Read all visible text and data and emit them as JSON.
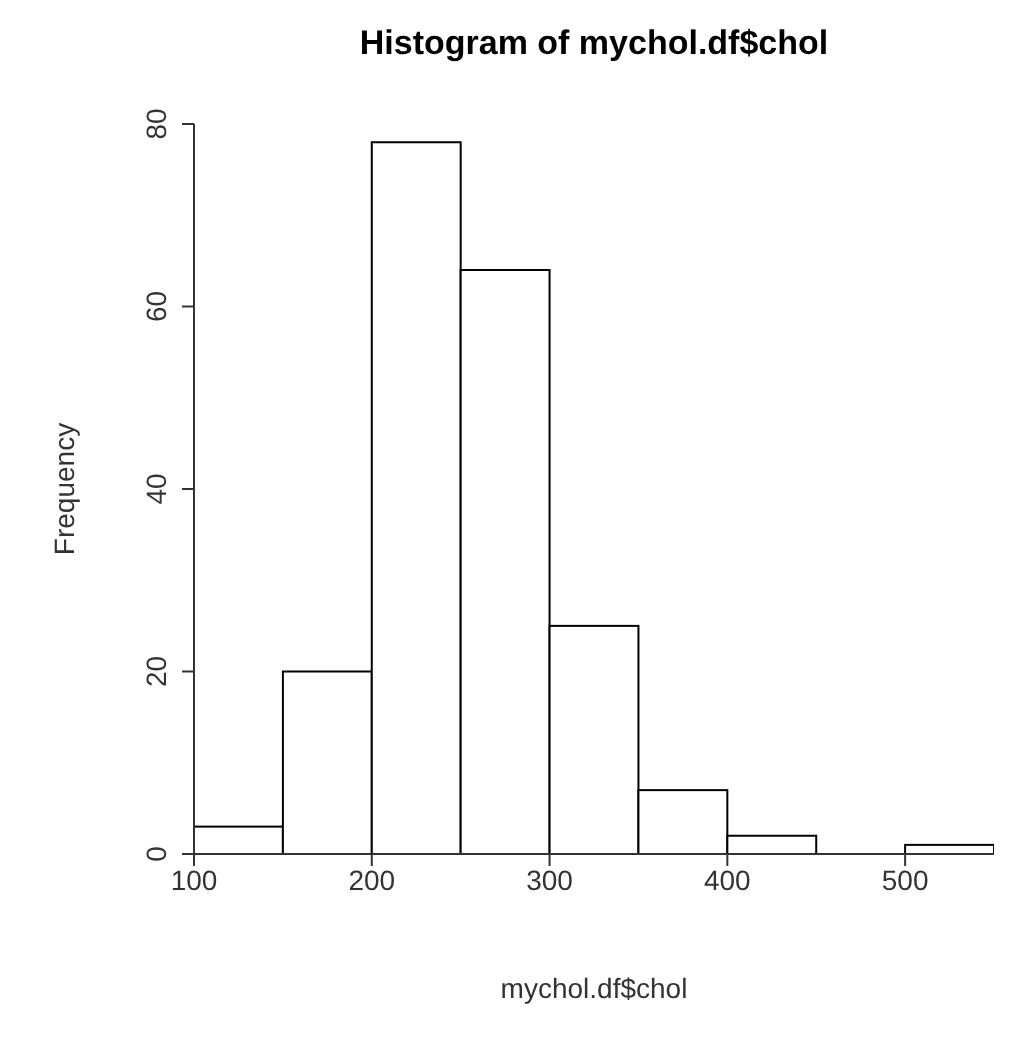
{
  "chart_data": {
    "type": "histogram",
    "title": "Histogram of mychol.df$chol",
    "xlabel": "mychol.df$chol",
    "ylabel": "Frequency",
    "bins": [
      100,
      150,
      200,
      250,
      300,
      350,
      400,
      450,
      500,
      550
    ],
    "values": [
      3,
      20,
      78,
      64,
      25,
      7,
      2,
      0,
      1
    ],
    "color": "#ffffff",
    "xlim": [
      100,
      550
    ],
    "xticks": [
      100,
      200,
      300,
      400,
      500
    ],
    "ylim": [
      0,
      80
    ],
    "yticks": [
      0,
      20,
      40,
      60,
      80
    ]
  }
}
